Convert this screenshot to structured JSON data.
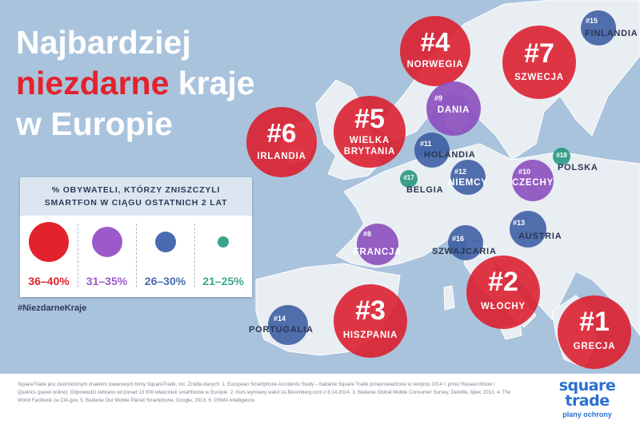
{
  "title": {
    "line1": "Najbardziej",
    "line2_highlight": "niezdarne",
    "line2_rest": " kraje",
    "line3": "w Europie"
  },
  "legend": {
    "heading": "% OBYWATELI, KTÓRZY ZNISZCZYLI SMARTFON W CIĄGU OSTATNICH 2 LAT",
    "items": [
      {
        "label": "36–40%",
        "color": "#e3222d"
      },
      {
        "label": "31–35%",
        "color": "#9b59c9"
      },
      {
        "label": "26–30%",
        "color": "#4a6bb0"
      },
      {
        "label": "21–25%",
        "color": "#3aa58a"
      }
    ]
  },
  "hashtag": "#NiezdarneKraje",
  "countries": [
    {
      "rank": "#1",
      "name": "GRECJA",
      "class": "36–40%"
    },
    {
      "rank": "#2",
      "name": "WŁOCHY",
      "class": "36–40%"
    },
    {
      "rank": "#3",
      "name": "HISZPANIA",
      "class": "36–40%"
    },
    {
      "rank": "#4",
      "name": "NORWEGIA",
      "class": "36–40%"
    },
    {
      "rank": "#5",
      "name": "WIELKA BRYTANIA",
      "name_line1": "WIELKA",
      "name_line2": "BRYTANIA",
      "class": "36–40%"
    },
    {
      "rank": "#6",
      "name": "IRLANDIA",
      "class": "36–40%"
    },
    {
      "rank": "#7",
      "name": "SZWECJA",
      "class": "36–40%"
    },
    {
      "rank": "#8",
      "name": "FRANCJA",
      "class": "31–35%"
    },
    {
      "rank": "#9",
      "name": "DANIA",
      "class": "31–35%"
    },
    {
      "rank": "#10",
      "name": "CZECHY",
      "class": "31–35%"
    },
    {
      "rank": "#11",
      "name": "HOLANDIA",
      "class": "26–30%"
    },
    {
      "rank": "#12",
      "name": "NIEMCY",
      "class": "26–30%"
    },
    {
      "rank": "#13",
      "name": "AUSTRIA",
      "class": "26–30%"
    },
    {
      "rank": "#14",
      "name": "PORTUGALIA",
      "class": "26–30%"
    },
    {
      "rank": "#15",
      "name": "FINLANDIA",
      "class": "26–30%"
    },
    {
      "rank": "#16",
      "name": "SZWAJCARIA",
      "class": "26–30%"
    },
    {
      "rank": "#17",
      "name": "BELGIA",
      "class": "21–25%"
    },
    {
      "rank": "#18",
      "name": "POLSKA",
      "class": "21–25%"
    }
  ],
  "footnote": "SquareTrade jest zastrzeżonym znakiem towarowym firmy SquareTrade, Inc. Źródła danych: 1. European Smartphone Accidents Study – badanie Square Trade przeprowadzone w sierpniu 2014 r. przez ResearchNow i Quatrics (panel online). Odpowiedzi zebrano od ponad 13 000 właścicieli smartfonów w Europie. 2. Kurs wymiany walut za Bloomberg.com z 8.14.2014. 3. Badanie Global Mobile Consumer Survey, Deloitte, lipiec 2013. 4. The World Factbook za CIA.gov. 5. Badanie Our Mobile Planet Smartphone, Google, 2013. 6. GSMA Intelligence.",
  "logo": {
    "brand_line1": "square",
    "brand_line2": "trade",
    "tagline": "plany ochrony"
  },
  "colors": {
    "red": "#e3222d",
    "purple": "#9b59c9",
    "blue": "#4a6bb0",
    "green": "#3aa58a",
    "sea": "#a9c3dc",
    "land": "#e9eef3"
  }
}
